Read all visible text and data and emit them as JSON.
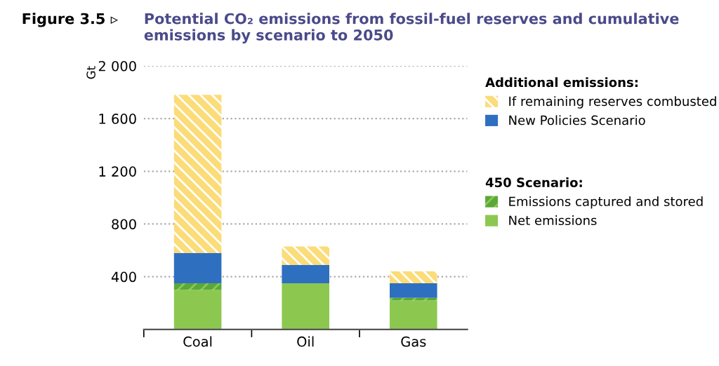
{
  "chart_data": {
    "type": "bar",
    "stacked": true,
    "title": "Potential CO₂ emissions from fossil-fuel reserves and cumulative emissions by scenario to 2050",
    "annotations": [
      "Figure 3.5 ▹",
      "450 Scenario:"
    ],
    "legend_title": "Additional emissions:",
    "ylabel": "Gt",
    "categories": [
      "Coal",
      "Oil",
      "Gas"
    ],
    "series": [
      {
        "name": "Net emissions",
        "color": "#8cc850",
        "values": [
          300,
          350,
          220
        ]
      },
      {
        "name": "Emissions captured and stored",
        "color": "#5aa83a",
        "values": [
          50,
          0,
          20
        ]
      },
      {
        "name": "New Policies Scenario",
        "color": "#2e6fbf",
        "values": [
          230,
          140,
          110
        ]
      },
      {
        "name": "If remaining reserves combusted",
        "color": "#fbdc78",
        "values": [
          1200,
          140,
          90
        ]
      }
    ],
    "ylim": [
      0,
      2000
    ],
    "yticks": [
      {
        "value": 400,
        "label": "400"
      },
      {
        "value": 800,
        "label": "800"
      },
      {
        "value": 1200,
        "label": "1 200"
      },
      {
        "value": 1600,
        "label": "1 600"
      },
      {
        "value": 2000,
        "label": "2 000"
      }
    ],
    "grid": "y",
    "legend": "right"
  }
}
